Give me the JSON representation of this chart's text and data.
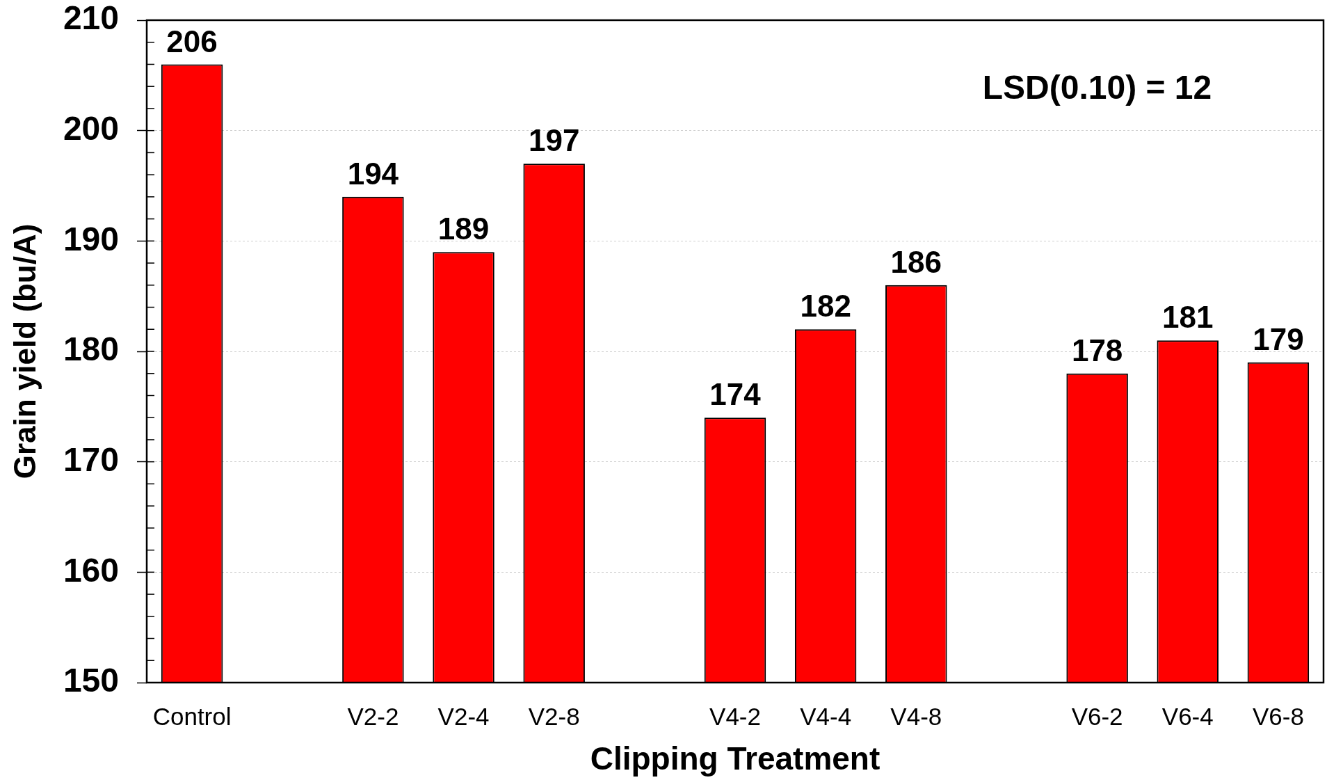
{
  "chart_data": {
    "type": "bar",
    "xlabel": "Clipping Treatment",
    "ylabel": "Grain yield (bu/A)",
    "categories": [
      "Control",
      null,
      "V2-2",
      "V2-4",
      "V2-8",
      null,
      "V4-2",
      "V4-4",
      "V4-8",
      null,
      "V6-2",
      "V6-4",
      "V6-8"
    ],
    "values": [
      206,
      null,
      194,
      189,
      197,
      null,
      174,
      182,
      186,
      null,
      178,
      181,
      179
    ],
    "color": "#ff0000",
    "ylim": [
      150,
      210
    ],
    "yticks": [
      150,
      {
        "value": 152,
        "label": null
      },
      {
        "value": 154,
        "label": null
      },
      {
        "value": 156,
        "label": null
      },
      {
        "value": 158,
        "label": null
      },
      160,
      {
        "value": 162,
        "label": null
      },
      {
        "value": 164,
        "label": null
      },
      {
        "value": 166,
        "label": null
      },
      {
        "value": 168,
        "label": null
      },
      170,
      {
        "value": 172,
        "label": null
      },
      {
        "value": 174,
        "label": null
      },
      {
        "value": 176,
        "label": null
      },
      {
        "value": 178,
        "label": null
      },
      180,
      {
        "value": 182,
        "label": null
      },
      {
        "value": 184,
        "label": null
      },
      {
        "value": 186,
        "label": null
      },
      {
        "value": 188,
        "label": null
      },
      190,
      {
        "value": 192,
        "label": null
      },
      {
        "value": 194,
        "label": null
      },
      {
        "value": 196,
        "label": null
      },
      {
        "value": 198,
        "label": null
      },
      200,
      {
        "value": 202,
        "label": null
      },
      {
        "value": 204,
        "label": null
      },
      {
        "value": 206,
        "label": null
      },
      {
        "value": 208,
        "label": null
      },
      210
    ],
    "grid": "y",
    "data_labels": true,
    "annotations": [
      "LSD(0.10) = 12"
    ]
  }
}
